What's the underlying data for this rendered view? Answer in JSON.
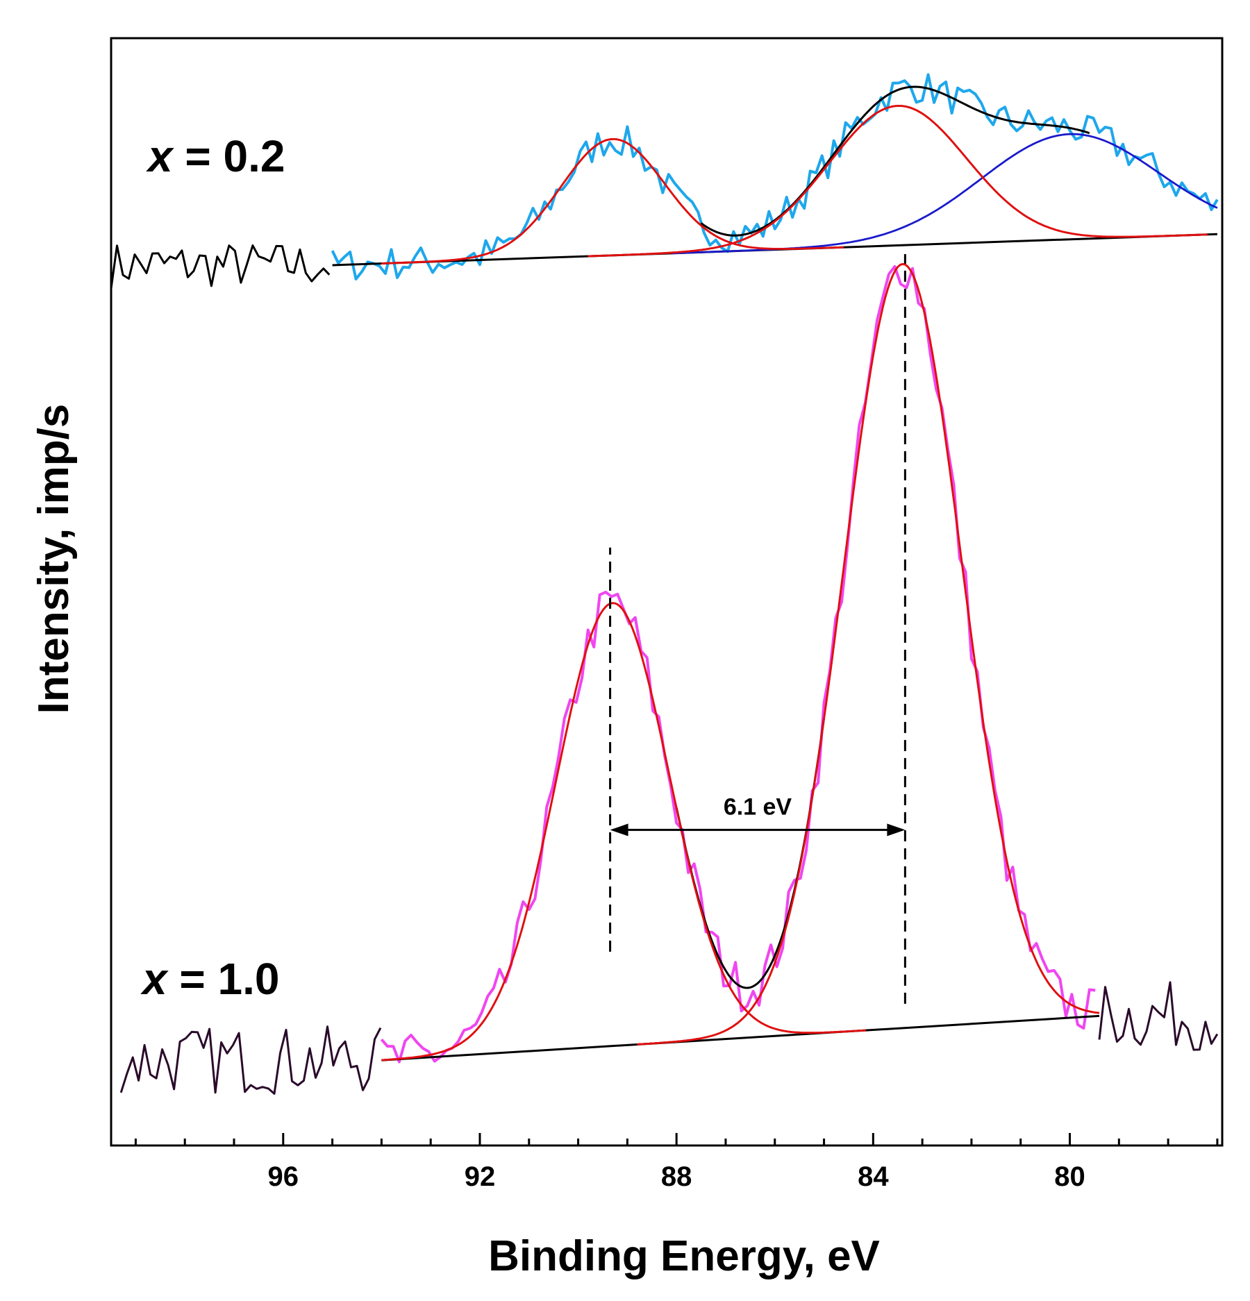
{
  "chart_data": {
    "type": "line",
    "title": "",
    "xlabel": "Binding Energy, eV",
    "ylabel": "Intensity, imp/s",
    "xlim": [
      99.5,
      76.9
    ],
    "x_reversed": true,
    "ylim": [
      0,
      100
    ],
    "y_ticks_visible": false,
    "xticks": [
      96,
      92,
      88,
      84,
      80
    ],
    "grid": false,
    "legend": "none",
    "colors": {
      "x02_data": "#1ea7ec",
      "x10_data": "#f046f0",
      "fit_component": "#e01010",
      "fit_component2": "#1a1acc",
      "envelope": "#000000",
      "background": "#000000",
      "raw_outside": "#000000",
      "raw_outside_x10": "#2a0a2a"
    },
    "series_labels": [
      {
        "id": "x02",
        "prefix": "x",
        "suffix": " = 0.2",
        "color": "#1ea7ec"
      },
      {
        "id": "x10",
        "prefix": "x",
        "suffix": " = 1.0",
        "color": "#f046f0"
      }
    ],
    "series": [
      {
        "name": "x = 0.2",
        "baseline": {
          "x": [
            95.0,
            77.0
          ],
          "y": [
            79.5,
            82.3
          ]
        },
        "peaks": [
          {
            "name": "red peak 1",
            "center": 89.3,
            "height": 10.5,
            "sigma": 1.05,
            "color": "red"
          },
          {
            "name": "red peak 2",
            "center": 83.5,
            "height": 12.6,
            "sigma": 1.4,
            "color": "red"
          },
          {
            "name": "blue peak",
            "center": 80.0,
            "height": 9.5,
            "sigma": 1.8,
            "color": "blue"
          }
        ],
        "data_range": [
          95.0,
          77.0
        ],
        "noise_amplitude": 1.5,
        "raw_outside_range": [
          99.5,
          95.0
        ]
      },
      {
        "name": "x = 1.0",
        "baseline": {
          "x": [
            94.0,
            79.4
          ],
          "y": [
            7.7,
            11.7
          ]
        },
        "peaks": [
          {
            "name": "red peak 1",
            "center": 89.3,
            "height": 40.0,
            "sigma": 1.15,
            "color": "red"
          },
          {
            "name": "red peak 2",
            "center": 83.4,
            "height": 69.0,
            "sigma": 1.2,
            "color": "red"
          }
        ],
        "data_range": [
          94.0,
          79.4
        ],
        "noise_amplitude": 2.2,
        "raw_outside_ranges": [
          [
            99.3,
            94.0
          ],
          [
            79.4,
            77.0
          ]
        ]
      }
    ],
    "annotations": [
      {
        "type": "vline_dashed",
        "x": 89.35,
        "y_range": [
          17.5,
          54.0
        ]
      },
      {
        "type": "vline_dashed",
        "x": 83.35,
        "y_range": [
          12.8,
          80.5
        ]
      },
      {
        "type": "double_arrow",
        "x_range": [
          89.35,
          83.35
        ],
        "y": 28.5,
        "text": "6.1 eV"
      }
    ]
  }
}
